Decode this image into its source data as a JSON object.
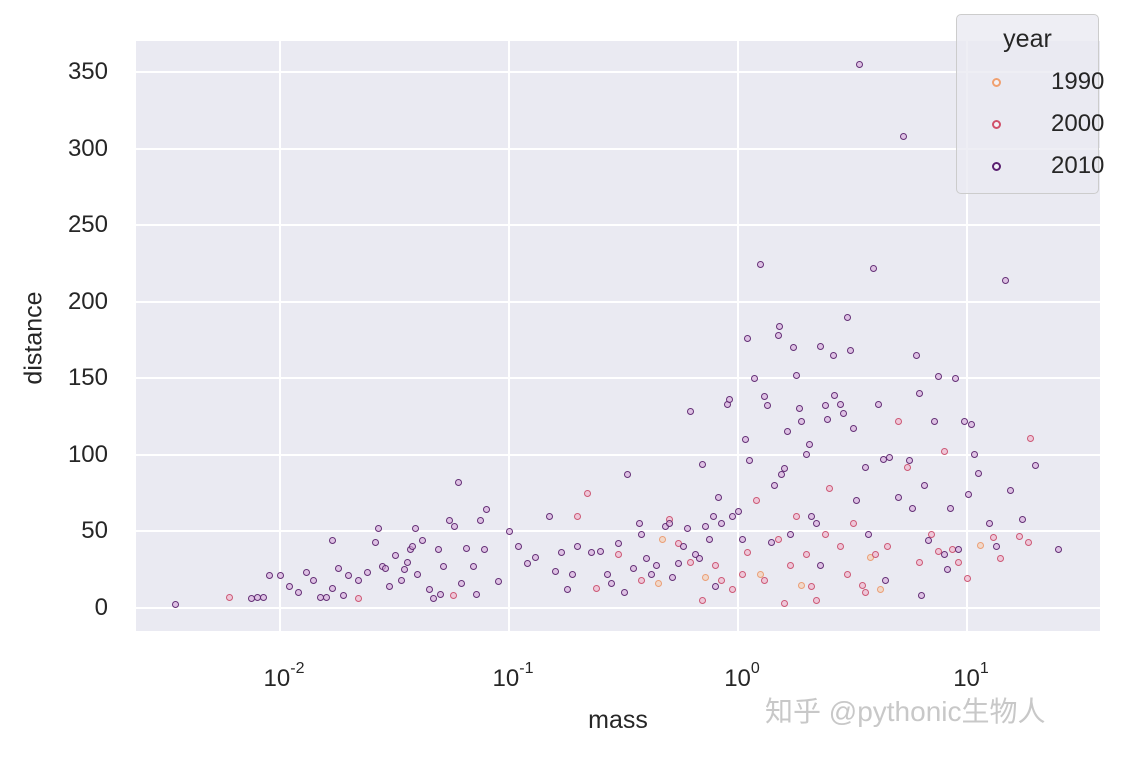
{
  "chart_data": {
    "type": "scatter",
    "title": "",
    "xlabel": "mass",
    "ylabel": "distance",
    "xscale": "log",
    "xlim": [
      0.0024,
      42
    ],
    "ylim": [
      -15,
      370
    ],
    "grid": true,
    "legend_position": "upper right",
    "x_ticks": [
      {
        "base": "10",
        "exp": "-2",
        "value": 0.01
      },
      {
        "base": "10",
        "exp": "-1",
        "value": 0.1
      },
      {
        "base": "10",
        "exp": "0",
        "value": 1
      },
      {
        "base": "10",
        "exp": "1",
        "value": 10
      }
    ],
    "y_ticks": [
      "0",
      "50",
      "100",
      "150",
      "200",
      "250",
      "300",
      "350"
    ],
    "legend": {
      "title": "year",
      "entries": [
        {
          "label": "1990",
          "color": "#f0a070"
        },
        {
          "label": "2000",
          "color": "#d0506a"
        },
        {
          "label": "2010",
          "color": "#5a2070"
        }
      ]
    },
    "series": [
      {
        "name": "1990",
        "points": [
          [
            0.45,
            16
          ],
          [
            0.72,
            20
          ],
          [
            1.9,
            15
          ],
          [
            4.2,
            12
          ],
          [
            11.5,
            41
          ],
          [
            0.47,
            45
          ],
          [
            3.8,
            33
          ],
          [
            1.25,
            22
          ]
        ]
      },
      {
        "name": "2000",
        "points": [
          [
            0.006,
            7
          ],
          [
            0.022,
            6
          ],
          [
            0.057,
            8
          ],
          [
            0.2,
            60
          ],
          [
            0.22,
            75
          ],
          [
            0.24,
            13
          ],
          [
            0.3,
            35
          ],
          [
            0.38,
            18
          ],
          [
            0.55,
            42
          ],
          [
            0.62,
            30
          ],
          [
            0.7,
            5
          ],
          [
            0.8,
            28
          ],
          [
            0.95,
            12
          ],
          [
            1.05,
            22
          ],
          [
            1.2,
            70
          ],
          [
            1.3,
            18
          ],
          [
            1.5,
            45
          ],
          [
            1.6,
            3
          ],
          [
            1.8,
            60
          ],
          [
            2.0,
            35
          ],
          [
            2.2,
            5
          ],
          [
            2.5,
            78
          ],
          [
            2.8,
            40
          ],
          [
            3.2,
            55
          ],
          [
            3.5,
            15
          ],
          [
            4.0,
            35
          ],
          [
            4.5,
            40
          ],
          [
            5.0,
            122
          ],
          [
            5.5,
            92
          ],
          [
            6.2,
            30
          ],
          [
            7.0,
            48
          ],
          [
            7.5,
            37
          ],
          [
            8.0,
            102
          ],
          [
            8.6,
            38
          ],
          [
            9.2,
            30
          ],
          [
            10.1,
            19
          ],
          [
            13.0,
            46
          ],
          [
            14.0,
            32
          ],
          [
            17.0,
            47
          ],
          [
            18.5,
            43
          ],
          [
            19.0,
            111
          ],
          [
            0.85,
            18
          ],
          [
            1.1,
            36
          ],
          [
            1.7,
            28
          ],
          [
            2.4,
            48
          ],
          [
            3.0,
            22
          ],
          [
            0.5,
            58
          ],
          [
            2.1,
            14
          ],
          [
            3.6,
            10
          ]
        ]
      },
      {
        "name": "2010",
        "points": [
          [
            0.0035,
            2
          ],
          [
            0.0075,
            6
          ],
          [
            0.008,
            7
          ],
          [
            0.0085,
            7
          ],
          [
            0.009,
            21
          ],
          [
            0.01,
            21
          ],
          [
            0.011,
            14
          ],
          [
            0.012,
            10
          ],
          [
            0.013,
            23
          ],
          [
            0.014,
            18
          ],
          [
            0.015,
            7
          ],
          [
            0.016,
            7
          ],
          [
            0.017,
            13
          ],
          [
            0.017,
            44
          ],
          [
            0.018,
            26
          ],
          [
            0.019,
            8
          ],
          [
            0.02,
            21
          ],
          [
            0.022,
            18
          ],
          [
            0.024,
            23
          ],
          [
            0.026,
            43
          ],
          [
            0.027,
            52
          ],
          [
            0.028,
            27
          ],
          [
            0.029,
            26
          ],
          [
            0.03,
            14
          ],
          [
            0.032,
            34
          ],
          [
            0.034,
            18
          ],
          [
            0.035,
            25
          ],
          [
            0.036,
            30
          ],
          [
            0.037,
            38
          ],
          [
            0.038,
            40
          ],
          [
            0.039,
            52
          ],
          [
            0.04,
            22
          ],
          [
            0.042,
            44
          ],
          [
            0.045,
            12
          ],
          [
            0.047,
            6
          ],
          [
            0.049,
            38
          ],
          [
            0.05,
            9
          ],
          [
            0.052,
            27
          ],
          [
            0.055,
            57
          ],
          [
            0.058,
            53
          ],
          [
            0.06,
            82
          ],
          [
            0.062,
            16
          ],
          [
            0.065,
            39
          ],
          [
            0.07,
            27
          ],
          [
            0.072,
            9
          ],
          [
            0.075,
            57
          ],
          [
            0.078,
            38
          ],
          [
            0.08,
            64
          ],
          [
            0.09,
            17
          ],
          [
            0.1,
            50
          ],
          [
            0.11,
            40
          ],
          [
            0.12,
            29
          ],
          [
            0.13,
            33
          ],
          [
            0.15,
            60
          ],
          [
            0.16,
            24
          ],
          [
            0.17,
            36
          ],
          [
            0.18,
            12
          ],
          [
            0.19,
            22
          ],
          [
            0.2,
            40
          ],
          [
            0.23,
            36
          ],
          [
            0.25,
            37
          ],
          [
            0.27,
            22
          ],
          [
            0.28,
            16
          ],
          [
            0.32,
            10
          ],
          [
            0.33,
            87
          ],
          [
            0.35,
            26
          ],
          [
            0.37,
            55
          ],
          [
            0.38,
            48
          ],
          [
            0.4,
            32
          ],
          [
            0.42,
            22
          ],
          [
            0.44,
            28
          ],
          [
            0.48,
            53
          ],
          [
            0.5,
            55
          ],
          [
            0.52,
            20
          ],
          [
            0.58,
            40
          ],
          [
            0.6,
            52
          ],
          [
            0.62,
            128
          ],
          [
            0.65,
            35
          ],
          [
            0.68,
            32
          ],
          [
            0.7,
            94
          ],
          [
            0.72,
            53
          ],
          [
            0.75,
            45
          ],
          [
            0.78,
            60
          ],
          [
            0.8,
            14
          ],
          [
            0.82,
            72
          ],
          [
            0.85,
            55
          ],
          [
            0.9,
            133
          ],
          [
            0.92,
            136
          ],
          [
            0.95,
            60
          ],
          [
            1.0,
            63
          ],
          [
            1.05,
            45
          ],
          [
            1.08,
            110
          ],
          [
            1.1,
            176
          ],
          [
            1.12,
            96
          ],
          [
            1.18,
            150
          ],
          [
            1.25,
            224
          ],
          [
            1.3,
            138
          ],
          [
            1.35,
            132
          ],
          [
            1.4,
            43
          ],
          [
            1.45,
            80
          ],
          [
            1.5,
            178
          ],
          [
            1.52,
            184
          ],
          [
            1.55,
            87
          ],
          [
            1.6,
            91
          ],
          [
            1.65,
            115
          ],
          [
            1.75,
            170
          ],
          [
            1.8,
            152
          ],
          [
            1.85,
            130
          ],
          [
            1.9,
            122
          ],
          [
            2.0,
            100
          ],
          [
            2.05,
            107
          ],
          [
            2.1,
            60
          ],
          [
            2.2,
            55
          ],
          [
            2.3,
            171
          ],
          [
            2.4,
            132
          ],
          [
            2.45,
            123
          ],
          [
            2.6,
            165
          ],
          [
            2.65,
            139
          ],
          [
            2.8,
            133
          ],
          [
            2.9,
            127
          ],
          [
            3.0,
            190
          ],
          [
            3.1,
            168
          ],
          [
            3.2,
            117
          ],
          [
            3.3,
            70
          ],
          [
            3.4,
            355
          ],
          [
            3.6,
            92
          ],
          [
            3.9,
            222
          ],
          [
            4.1,
            133
          ],
          [
            4.3,
            97
          ],
          [
            4.6,
            98
          ],
          [
            5.0,
            72
          ],
          [
            5.3,
            308
          ],
          [
            5.6,
            96
          ],
          [
            5.8,
            65
          ],
          [
            6.0,
            165
          ],
          [
            6.2,
            140
          ],
          [
            6.5,
            80
          ],
          [
            6.8,
            44
          ],
          [
            7.2,
            122
          ],
          [
            7.5,
            151
          ],
          [
            8.0,
            35
          ],
          [
            8.5,
            65
          ],
          [
            8.9,
            150
          ],
          [
            9.2,
            38
          ],
          [
            9.8,
            122
          ],
          [
            10.2,
            74
          ],
          [
            10.5,
            120
          ],
          [
            10.8,
            100
          ],
          [
            11.2,
            88
          ],
          [
            12.5,
            55
          ],
          [
            13.5,
            40
          ],
          [
            14.8,
            214
          ],
          [
            15.5,
            77
          ],
          [
            17.5,
            58
          ],
          [
            20.0,
            93
          ],
          [
            25.0,
            38
          ],
          [
            0.3,
            42
          ],
          [
            0.55,
            29
          ],
          [
            1.7,
            48
          ],
          [
            2.3,
            28
          ],
          [
            3.7,
            48
          ],
          [
            4.4,
            18
          ],
          [
            6.3,
            8
          ],
          [
            8.2,
            25
          ]
        ]
      }
    ]
  },
  "watermark": "知乎 @pythonic生物人"
}
